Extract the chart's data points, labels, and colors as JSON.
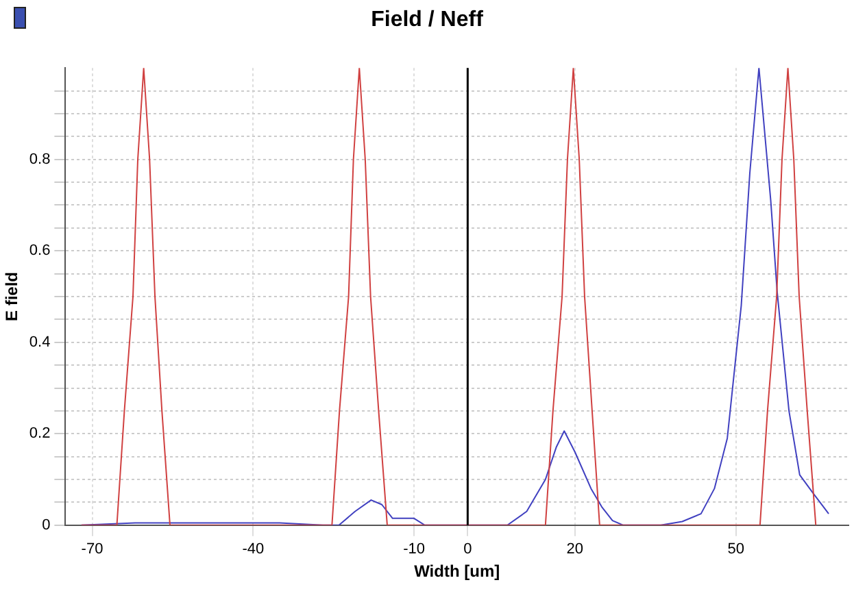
{
  "chart_data": {
    "type": "line",
    "title": "Field / Neff",
    "xlabel": "Width [um]",
    "ylabel": "E field",
    "xlim": [
      -75,
      71
    ],
    "ylim": [
      0,
      1
    ],
    "xticks": [
      -70,
      -40,
      -10,
      0,
      20,
      50
    ],
    "yticks": [
      0,
      {
        "value": 0.05,
        "label": null
      },
      {
        "value": 0.1,
        "label": null
      },
      {
        "value": 0.15,
        "label": null
      },
      0.2,
      {
        "value": 0.25,
        "label": null
      },
      {
        "value": 0.3,
        "label": null
      },
      {
        "value": 0.35,
        "label": null
      },
      0.4,
      {
        "value": 0.45,
        "label": null
      },
      {
        "value": 0.5,
        "label": null
      },
      {
        "value": 0.55,
        "label": null
      },
      0.6,
      {
        "value": 0.65,
        "label": null
      },
      {
        "value": 0.7,
        "label": null
      },
      {
        "value": 0.75,
        "label": null
      },
      0.8,
      {
        "value": 0.85,
        "label": null
      },
      {
        "value": 0.9,
        "label": null
      },
      {
        "value": 0.95,
        "label": null
      }
    ],
    "grid": true,
    "ref_lines": [
      {
        "axis": "x",
        "value": 0,
        "color": "#000000"
      }
    ],
    "legend": false,
    "marker": "none",
    "line_style": "solid",
    "series": [
      {
        "color": "#d04040",
        "x": [
          -72,
          -65.4,
          -64,
          -62.4,
          -61.5,
          -60.4,
          -59.3,
          -58.3,
          -57,
          -55.5,
          -25.3,
          -23.9,
          -22.2,
          -21.3,
          -20.2,
          -19.1,
          -18.1,
          -16.6,
          -15,
          14.5,
          15.9,
          17.6,
          18.6,
          19.7,
          20.8,
          21.8,
          23.2,
          24.6,
          54.5,
          55.9,
          57.6,
          58.6,
          59.7,
          60.8,
          61.8,
          63.3,
          64.9
        ],
        "values": [
          0,
          0,
          0.25,
          0.5,
          0.8,
          1,
          0.8,
          0.5,
          0.25,
          0,
          0,
          0.25,
          0.5,
          0.8,
          1,
          0.8,
          0.5,
          0.25,
          0,
          0,
          0.25,
          0.5,
          0.8,
          1,
          0.8,
          0.5,
          0.25,
          0,
          0,
          0.25,
          0.5,
          0.8,
          1,
          0.8,
          0.5,
          0.25,
          0
        ]
      },
      {
        "color": "#4040c0",
        "x": [
          -72,
          -62,
          -50,
          -35,
          -27,
          -24,
          -21,
          -18,
          -16,
          -14,
          -10,
          -8,
          0,
          7.4,
          11,
          14.5,
          16.5,
          18,
          20,
          23,
          25,
          27,
          29,
          36,
          40,
          43.5,
          46,
          48.4,
          51,
          52.6,
          54.3,
          56.5,
          57.7,
          59.9,
          61.9,
          64.4,
          67.3
        ],
        "values": [
          0,
          0.005,
          0.005,
          0.005,
          0,
          0,
          0.03,
          0.055,
          0.045,
          0.015,
          0.015,
          0,
          0,
          0,
          0.03,
          0.1,
          0.17,
          0.206,
          0.16,
          0.08,
          0.04,
          0.01,
          0,
          0,
          0.008,
          0.025,
          0.08,
          0.19,
          0.48,
          0.77,
          1,
          0.71,
          0.51,
          0.25,
          0.11,
          0.07,
          0.025
        ]
      }
    ]
  }
}
